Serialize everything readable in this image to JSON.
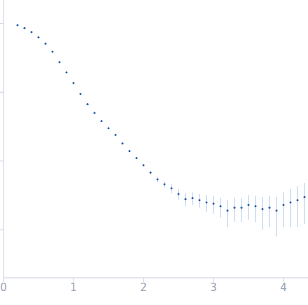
{
  "chart_data": {
    "type": "scatter",
    "xlim": [
      0,
      4.35
    ],
    "xticks": [
      0,
      1,
      2,
      3,
      4
    ],
    "ylim": [
      0.0002,
      2.2
    ],
    "yticks": [
      0.001,
      0.01,
      0.1,
      1
    ],
    "log": "y",
    "tick_labels": "x",
    "grid": false,
    "marker": "circle",
    "series": [
      {
        "color": "#2a5caa",
        "x": [
          0.2,
          0.3,
          0.4,
          0.5,
          0.6,
          0.7,
          0.8,
          0.9,
          1.0,
          1.1,
          1.2,
          1.3,
          1.4,
          1.5,
          1.6,
          1.7,
          1.8,
          1.9,
          2.0,
          2.1,
          2.2,
          2.3,
          2.4,
          2.5,
          2.6,
          2.7,
          2.8,
          2.9,
          3.0,
          3.1,
          3.2,
          3.3,
          3.4,
          3.5,
          3.6,
          3.7,
          3.8,
          3.9,
          4.0,
          4.1,
          4.2,
          4.3
        ],
        "values": [
          0.95,
          0.86,
          0.75,
          0.63,
          0.51,
          0.39,
          0.275,
          0.195,
          0.136,
          0.095,
          0.067,
          0.05,
          0.038,
          0.03,
          0.024,
          0.018,
          0.0139,
          0.011,
          0.0087,
          0.0068,
          0.0054,
          0.0046,
          0.004,
          0.0033,
          0.0028,
          0.0029,
          0.0027,
          0.0025,
          0.0024,
          0.0022,
          0.0019,
          0.0021,
          0.0021,
          0.0023,
          0.0022,
          0.002,
          0.0021,
          0.0019,
          0.0023,
          0.0025,
          0.0027,
          0.003
        ],
        "errors": [
          0.005,
          0.005,
          0.005,
          0.005,
          0.004,
          0.004,
          0.003,
          0.002,
          0.002,
          0.0015,
          0.001,
          0.001,
          0.0008,
          0.0007,
          0.0006,
          0.0005,
          0.0004,
          0.0004,
          0.0004,
          0.0004,
          0.0005,
          0.0005,
          0.0006,
          0.0006,
          0.0006,
          0.0006,
          0.0006,
          0.0007,
          0.0007,
          0.0007,
          0.0008,
          0.0008,
          0.0008,
          0.0009,
          0.0009,
          0.001,
          0.001,
          0.0011,
          0.0012,
          0.0014,
          0.0016,
          0.0018
        ]
      }
    ]
  }
}
